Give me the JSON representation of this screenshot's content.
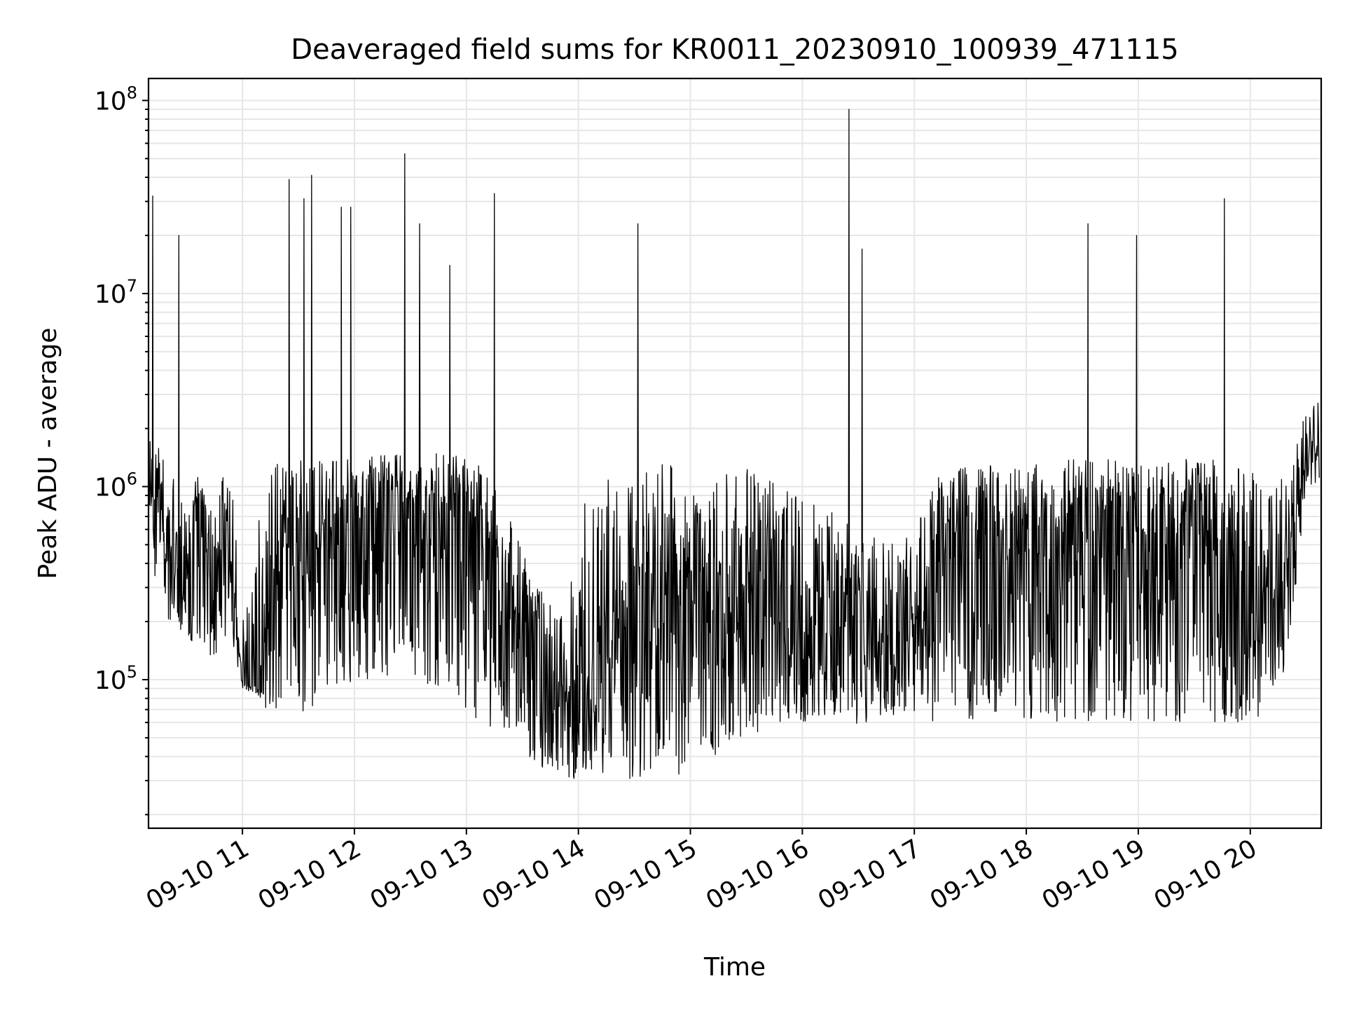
{
  "chart_data": {
    "type": "line",
    "title": "Deaveraged field sums for KR0011_20230910_100939_471115",
    "xlabel": "Time",
    "ylabel": "Peak ADU - average",
    "yscale": "log",
    "ylim": [
      17000,
      130000000
    ],
    "xlim": [
      "2023-09-10 10:09:40",
      "2023-09-10 20:38:00"
    ],
    "grid": true,
    "x_ticks": [
      "09-10 11",
      "09-10 12",
      "09-10 13",
      "09-10 14",
      "09-10 15",
      "09-10 16",
      "09-10 17",
      "09-10 18",
      "09-10 19",
      "09-10 20"
    ],
    "x_tick_times": [
      "2023-09-10 11:00",
      "2023-09-10 12:00",
      "2023-09-10 13:00",
      "2023-09-10 14:00",
      "2023-09-10 15:00",
      "2023-09-10 16:00",
      "2023-09-10 17:00",
      "2023-09-10 18:00",
      "2023-09-10 19:00",
      "2023-09-10 20:00"
    ],
    "y_ticks": [
      {
        "value": 100000,
        "base": "10",
        "exp": "5"
      },
      {
        "value": 1000000,
        "base": "10",
        "exp": "6"
      },
      {
        "value": 10000000,
        "base": "10",
        "exp": "7"
      },
      {
        "value": 100000000,
        "base": "10",
        "exp": "8"
      }
    ],
    "series": [
      {
        "color": "#000000",
        "x": [
          "2023-09-10 10:10",
          "2023-09-10 10:15",
          "2023-09-10 10:20",
          "2023-09-10 10:25",
          "2023-09-10 10:30",
          "2023-09-10 10:35",
          "2023-09-10 10:40",
          "2023-09-10 10:45",
          "2023-09-10 10:50",
          "2023-09-10 10:55",
          "2023-09-10 11:00",
          "2023-09-10 11:10",
          "2023-09-10 11:15",
          "2023-09-10 11:20",
          "2023-09-10 11:25",
          "2023-09-10 11:30",
          "2023-09-10 11:35",
          "2023-09-10 11:40",
          "2023-09-10 11:45",
          "2023-09-10 11:50",
          "2023-09-10 11:55",
          "2023-09-10 12:00",
          "2023-09-10 12:10",
          "2023-09-10 12:20",
          "2023-09-10 12:30",
          "2023-09-10 12:40",
          "2023-09-10 12:50",
          "2023-09-10 13:00",
          "2023-09-10 13:10",
          "2023-09-10 13:20",
          "2023-09-10 13:30",
          "2023-09-10 13:40",
          "2023-09-10 13:50",
          "2023-09-10 14:00",
          "2023-09-10 14:10",
          "2023-09-10 14:20",
          "2023-09-10 14:30",
          "2023-09-10 14:40",
          "2023-09-10 14:50",
          "2023-09-10 15:00",
          "2023-09-10 15:10",
          "2023-09-10 15:20",
          "2023-09-10 15:30",
          "2023-09-10 15:40",
          "2023-09-10 15:50",
          "2023-09-10 16:00",
          "2023-09-10 16:10",
          "2023-09-10 16:20",
          "2023-09-10 16:30",
          "2023-09-10 16:40",
          "2023-09-10 16:50",
          "2023-09-10 17:00",
          "2023-09-10 17:10",
          "2023-09-10 17:20",
          "2023-09-10 17:30",
          "2023-09-10 17:40",
          "2023-09-10 17:50",
          "2023-09-10 18:00",
          "2023-09-10 18:10",
          "2023-09-10 18:20",
          "2023-09-10 18:30",
          "2023-09-10 18:40",
          "2023-09-10 18:50",
          "2023-09-10 19:00",
          "2023-09-10 19:10",
          "2023-09-10 19:20",
          "2023-09-10 19:30",
          "2023-09-10 19:40",
          "2023-09-10 19:50",
          "2023-09-10 20:00",
          "2023-09-10 20:10",
          "2023-09-10 20:20",
          "2023-09-10 20:30",
          "2023-09-10 20:37"
        ],
        "y": [
          1000000,
          800000,
          500000,
          400000,
          300000,
          800000,
          600000,
          300000,
          800000,
          400000,
          100000,
          90000,
          400000,
          300000,
          500000,
          400000,
          400000,
          400000,
          500000,
          500000,
          400000,
          500000,
          700000,
          900000,
          800000,
          700000,
          700000,
          700000,
          600000,
          250000,
          200000,
          120000,
          100000,
          90000,
          80000,
          200000,
          250000,
          200000,
          250000,
          300000,
          200000,
          250000,
          300000,
          250000,
          200000,
          150000,
          150000,
          200000,
          250000,
          200000,
          150000,
          200000,
          500000,
          500000,
          600000,
          600000,
          500000,
          600000,
          500000,
          600000,
          700000,
          600000,
          600000,
          600000,
          500000,
          600000,
          600000,
          500000,
          400000,
          300000,
          300000,
          500000,
          1400000,
          1600000
        ],
        "band_low": [
          300000,
          250000,
          200000,
          200000,
          150000,
          120000,
          150000,
          120000,
          150000,
          150000,
          90000,
          80000,
          60000,
          60000,
          70000,
          70000,
          60000,
          60000,
          80000,
          90000,
          90000,
          90000,
          100000,
          100000,
          100000,
          90000,
          70000,
          60000,
          60000,
          50000,
          40000,
          35000,
          32000,
          30000,
          32000,
          32000,
          30000,
          30000,
          32000,
          33000,
          35000,
          45000,
          50000,
          55000,
          60000,
          60000,
          60000,
          60000,
          55000,
          60000,
          60000,
          60000,
          60000,
          60000,
          60000,
          60000,
          60000,
          60000,
          60000,
          60000,
          60000,
          60000,
          60000,
          60000,
          60000,
          60000,
          60000,
          60000,
          60000,
          60000,
          70000,
          100000,
          900000,
          1100000
        ],
        "band_high": [
          1800000,
          1600000,
          1500000,
          1200000,
          900000,
          1200000,
          900000,
          700000,
          1200000,
          900000,
          200000,
          800000,
          1400000,
          1400000,
          1400000,
          1400000,
          1400000,
          1400000,
          1400000,
          1400000,
          1400000,
          1400000,
          1500000,
          1500000,
          1500000,
          1500000,
          1500000,
          1400000,
          1300000,
          800000,
          500000,
          300000,
          200000,
          800000,
          1200000,
          1300000,
          1300000,
          1300000,
          1300000,
          1300000,
          1300000,
          1300000,
          1300000,
          1300000,
          1200000,
          1000000,
          800000,
          700000,
          600000,
          600000,
          500000,
          600000,
          1100000,
          1200000,
          1300000,
          1300000,
          1300000,
          1300000,
          1300000,
          1400000,
          1400000,
          1400000,
          1400000,
          1400000,
          1400000,
          1400000,
          1400000,
          1400000,
          1300000,
          1200000,
          1100000,
          1200000,
          2500000,
          2800000
        ]
      }
    ],
    "spikes": [
      {
        "x": "2023-09-10 10:12",
        "y": 32000000
      },
      {
        "x": "2023-09-10 10:26",
        "y": 20000000
      },
      {
        "x": "2023-09-10 11:25",
        "y": 39000000
      },
      {
        "x": "2023-09-10 11:33",
        "y": 31000000
      },
      {
        "x": "2023-09-10 11:37",
        "y": 41000000
      },
      {
        "x": "2023-09-10 11:53",
        "y": 28000000
      },
      {
        "x": "2023-09-10 11:58",
        "y": 28000000
      },
      {
        "x": "2023-09-10 12:27",
        "y": 53000000
      },
      {
        "x": "2023-09-10 12:35",
        "y": 23000000
      },
      {
        "x": "2023-09-10 12:51",
        "y": 14000000
      },
      {
        "x": "2023-09-10 13:15",
        "y": 33000000
      },
      {
        "x": "2023-09-10 14:32",
        "y": 23000000
      },
      {
        "x": "2023-09-10 16:25",
        "y": 90000000
      },
      {
        "x": "2023-09-10 16:32",
        "y": 17000000
      },
      {
        "x": "2023-09-10 18:33",
        "y": 23000000
      },
      {
        "x": "2023-09-10 18:59",
        "y": 20000000
      },
      {
        "x": "2023-09-10 19:46",
        "y": 31000000
      }
    ]
  }
}
